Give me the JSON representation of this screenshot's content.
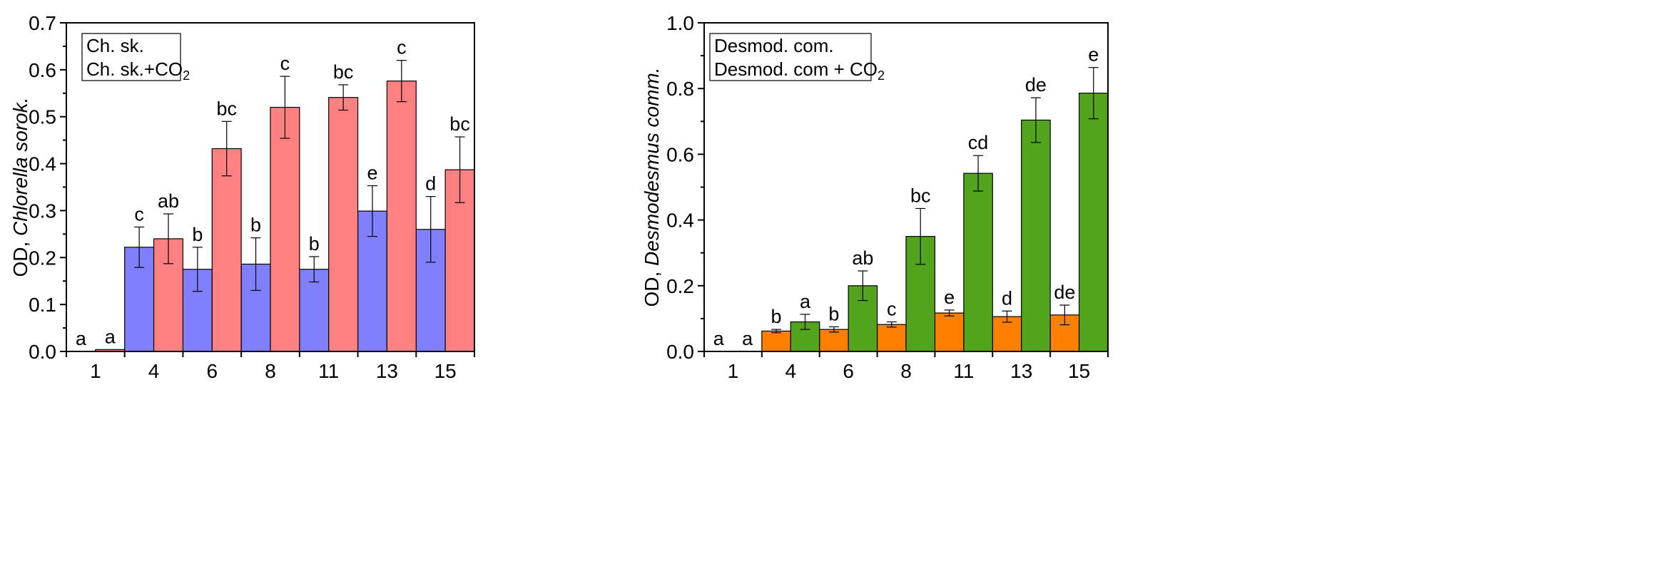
{
  "chart_data": [
    {
      "type": "bar",
      "title": "",
      "xlabel": "",
      "ylabel_prefix": "OD, ",
      "ylabel_italic": "Chlorella sorok.",
      "ylim": [
        0,
        0.7
      ],
      "yticks": [
        0.0,
        0.1,
        0.2,
        0.3,
        0.4,
        0.5,
        0.6,
        0.7
      ],
      "ytick_labels": [
        "0.0",
        "0.1",
        "0.2",
        "0.3",
        "0.4",
        "0.5",
        "0.6",
        "0.7"
      ],
      "categories": [
        "1",
        "4",
        "6",
        "8",
        "11",
        "13",
        "15"
      ],
      "legend": {
        "position": "top-left",
        "entries": [
          {
            "text": "Ch. sk.",
            "sub": ""
          },
          {
            "text": "Ch. sk.+CO",
            "sub": "2"
          }
        ]
      },
      "series": [
        {
          "name": "Ch. sk.",
          "color": "#8080ff",
          "values": [
            0.0,
            0.222,
            0.175,
            0.186,
            0.175,
            0.299,
            0.26
          ],
          "errors": [
            0.0,
            0.043,
            0.047,
            0.056,
            0.027,
            0.054,
            0.07
          ],
          "letters": [
            "a",
            "c",
            "b",
            "b",
            "b",
            "e",
            "d"
          ]
        },
        {
          "name": "Ch. sk.+CO2",
          "color": "#ff8080",
          "values": [
            0.004,
            0.24,
            0.432,
            0.52,
            0.541,
            0.576,
            0.387
          ],
          "errors": [
            0.0,
            0.053,
            0.058,
            0.066,
            0.027,
            0.044,
            0.07
          ],
          "letters": [
            "a",
            "ab",
            "bc",
            "c",
            "bc",
            "c",
            "bc"
          ]
        }
      ]
    },
    {
      "type": "bar",
      "title": "",
      "xlabel": "",
      "ylabel_prefix": "OD, ",
      "ylabel_italic": "Desmodesmus comm.",
      "ylim": [
        0,
        1.0
      ],
      "yticks": [
        0.0,
        0.2,
        0.4,
        0.6,
        0.8,
        1.0
      ],
      "ytick_labels": [
        "0.0",
        "0.2",
        "0.4",
        "0.6",
        "0.8",
        "1.0"
      ],
      "categories": [
        "1",
        "4",
        "6",
        "8",
        "11",
        "13",
        "15"
      ],
      "legend": {
        "position": "top-left",
        "entries": [
          {
            "text": "Desmod. com.",
            "sub": ""
          },
          {
            "text": "Desmod. com + CO",
            "sub": "2"
          }
        ]
      },
      "series": [
        {
          "name": "Desmod. com.",
          "color": "#ff8000",
          "values": [
            0.0,
            0.062,
            0.067,
            0.082,
            0.117,
            0.106,
            0.111
          ],
          "errors": [
            0.0,
            0.005,
            0.008,
            0.008,
            0.009,
            0.017,
            0.03
          ],
          "letters": [
            "a",
            "b",
            "b",
            "c",
            "e",
            "d",
            "de"
          ]
        },
        {
          "name": "Desmod. com + CO2",
          "color": "#52a41c",
          "values": [
            0.0,
            0.09,
            0.2,
            0.35,
            0.542,
            0.704,
            0.786
          ],
          "errors": [
            0.0,
            0.023,
            0.045,
            0.085,
            0.054,
            0.068,
            0.078
          ],
          "letters": [
            "a",
            "a",
            "ab",
            "bc",
            "cd",
            "de",
            "e"
          ]
        }
      ]
    }
  ]
}
